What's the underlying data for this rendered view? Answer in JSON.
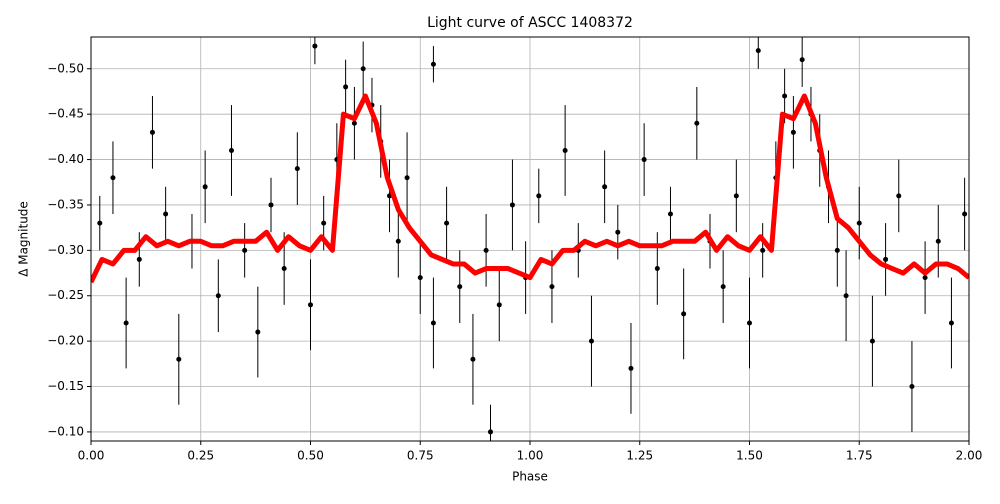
{
  "chart_data": {
    "type": "scatter",
    "title": "Light curve of ASCC 1408372",
    "x_label": "Phase",
    "y_label": "Δ Magnitude",
    "xlim": [
      0,
      2
    ],
    "ylim": [
      -0.09,
      -0.535
    ],
    "xticks": [
      {
        "value": 0,
        "label": "0.00"
      },
      {
        "value": 0.25,
        "label": "0.25"
      },
      {
        "value": 0.5,
        "label": "0.50"
      },
      {
        "value": 0.75,
        "label": "0.75"
      },
      {
        "value": 1,
        "label": "1.00"
      },
      {
        "value": 1.25,
        "label": "1.25"
      },
      {
        "value": 1.5,
        "label": "1.50"
      },
      {
        "value": 1.75,
        "label": "1.75"
      },
      {
        "value": 2,
        "label": "2.00"
      }
    ],
    "yticks": [
      {
        "value": -0.5,
        "label": "−0.50"
      },
      {
        "value": -0.45,
        "label": "−0.45"
      },
      {
        "value": -0.4,
        "label": "−0.40"
      },
      {
        "value": -0.35,
        "label": "−0.35"
      },
      {
        "value": -0.3,
        "label": "−0.30"
      },
      {
        "value": -0.25,
        "label": "−0.25"
      },
      {
        "value": -0.2,
        "label": "−0.20"
      },
      {
        "value": -0.15,
        "label": "−0.15"
      },
      {
        "value": -0.1,
        "label": "−0.10"
      }
    ],
    "grid": true,
    "series": [
      {
        "color": "#000000",
        "x": [
          0.02,
          0.05,
          0.08,
          0.11,
          0.14,
          0.17,
          0.2,
          0.23,
          0.26,
          0.29,
          0.32,
          0.35,
          0.38,
          0.41,
          0.44,
          0.47,
          0.5,
          0.51,
          0.53,
          0.56,
          0.58,
          0.6,
          0.62,
          0.64,
          0.66,
          0.68,
          0.7,
          0.72,
          0.75,
          0.78,
          0.78,
          0.81,
          0.84,
          0.87,
          0.9,
          0.91,
          0.93,
          0.96,
          0.99,
          1.02,
          1.05,
          1.08,
          1.11,
          1.14,
          1.17,
          1.2,
          1.23,
          1.26,
          1.29,
          1.32,
          1.35,
          1.38,
          1.41,
          1.44,
          1.47,
          1.5,
          1.52,
          1.53,
          1.56,
          1.58,
          1.6,
          1.62,
          1.64,
          1.66,
          1.68,
          1.7,
          1.72,
          1.75,
          1.78,
          1.81,
          1.84,
          1.87,
          1.9,
          1.93,
          1.96,
          1.99
        ],
        "values": [
          -0.33,
          -0.38,
          -0.22,
          -0.29,
          -0.43,
          -0.34,
          -0.18,
          -0.31,
          -0.37,
          -0.25,
          -0.41,
          -0.3,
          -0.21,
          -0.35,
          -0.28,
          -0.39,
          -0.24,
          -0.525,
          -0.33,
          -0.4,
          -0.48,
          -0.44,
          -0.5,
          -0.46,
          -0.42,
          -0.36,
          -0.31,
          -0.38,
          -0.27,
          -0.22,
          -0.505,
          -0.33,
          -0.26,
          -0.18,
          -0.3,
          -0.1,
          -0.24,
          -0.35,
          -0.27,
          -0.36,
          -0.26,
          -0.41,
          -0.3,
          -0.2,
          -0.37,
          -0.32,
          -0.17,
          -0.4,
          -0.28,
          -0.34,
          -0.23,
          -0.44,
          -0.31,
          -0.26,
          -0.36,
          -0.22,
          -0.52,
          -0.3,
          -0.38,
          -0.47,
          -0.43,
          -0.51,
          -0.45,
          -0.41,
          -0.37,
          -0.3,
          -0.25,
          -0.33,
          -0.2,
          -0.29,
          -0.36,
          -0.15,
          -0.27,
          -0.31,
          -0.22,
          -0.34
        ],
        "errors": [
          0.03,
          0.04,
          0.05,
          0.03,
          0.04,
          0.03,
          0.05,
          0.03,
          0.04,
          0.04,
          0.05,
          0.03,
          0.05,
          0.03,
          0.04,
          0.04,
          0.05,
          0.02,
          0.03,
          0.04,
          0.03,
          0.04,
          0.03,
          0.03,
          0.04,
          0.04,
          0.04,
          0.05,
          0.04,
          0.05,
          0.02,
          0.04,
          0.04,
          0.05,
          0.04,
          0.03,
          0.04,
          0.05,
          0.04,
          0.03,
          0.04,
          0.05,
          0.03,
          0.05,
          0.04,
          0.03,
          0.05,
          0.04,
          0.04,
          0.03,
          0.05,
          0.04,
          0.03,
          0.04,
          0.04,
          0.05,
          0.02,
          0.03,
          0.04,
          0.03,
          0.04,
          0.03,
          0.03,
          0.04,
          0.04,
          0.04,
          0.05,
          0.04,
          0.05,
          0.04,
          0.04,
          0.05,
          0.04,
          0.04,
          0.05,
          0.04
        ]
      },
      {
        "type": "line",
        "color": "#ff0000",
        "x": [
          0,
          0.025,
          0.05,
          0.075,
          0.1,
          0.125,
          0.15,
          0.175,
          0.2,
          0.225,
          0.25,
          0.275,
          0.3,
          0.325,
          0.35,
          0.375,
          0.4,
          0.425,
          0.45,
          0.475,
          0.5,
          0.525,
          0.55,
          0.575,
          0.6,
          0.625,
          0.65,
          0.675,
          0.7,
          0.725,
          0.75,
          0.775,
          0.8,
          0.825,
          0.85,
          0.875,
          0.9,
          0.925,
          0.95,
          0.975,
          1,
          1.025,
          1.05,
          1.075,
          1.1,
          1.125,
          1.15,
          1.175,
          1.2,
          1.225,
          1.25,
          1.275,
          1.3,
          1.325,
          1.35,
          1.375,
          1.4,
          1.425,
          1.45,
          1.475,
          1.5,
          1.525,
          1.55,
          1.575,
          1.6,
          1.625,
          1.65,
          1.675,
          1.7,
          1.725,
          1.75,
          1.775,
          1.8,
          1.825,
          1.85,
          1.875,
          1.9,
          1.925,
          1.95,
          1.975,
          2
        ],
        "values": [
          -0.265,
          -0.29,
          -0.285,
          -0.3,
          -0.3,
          -0.315,
          -0.305,
          -0.31,
          -0.305,
          -0.31,
          -0.31,
          -0.305,
          -0.305,
          -0.31,
          -0.31,
          -0.31,
          -0.32,
          -0.3,
          -0.315,
          -0.305,
          -0.3,
          -0.315,
          -0.3,
          -0.45,
          -0.445,
          -0.47,
          -0.44,
          -0.38,
          -0.345,
          -0.325,
          -0.31,
          -0.295,
          -0.29,
          -0.285,
          -0.285,
          -0.275,
          -0.28,
          -0.28,
          -0.28,
          -0.275,
          -0.27,
          -0.29,
          -0.285,
          -0.3,
          -0.3,
          -0.31,
          -0.305,
          -0.31,
          -0.305,
          -0.31,
          -0.305,
          -0.305,
          -0.305,
          -0.31,
          -0.31,
          -0.31,
          -0.32,
          -0.3,
          -0.315,
          -0.305,
          -0.3,
          -0.315,
          -0.3,
          -0.45,
          -0.445,
          -0.47,
          -0.44,
          -0.38,
          -0.335,
          -0.325,
          -0.31,
          -0.295,
          -0.285,
          -0.28,
          -0.275,
          -0.285,
          -0.275,
          -0.285,
          -0.285,
          -0.28,
          -0.27
        ]
      }
    ]
  }
}
